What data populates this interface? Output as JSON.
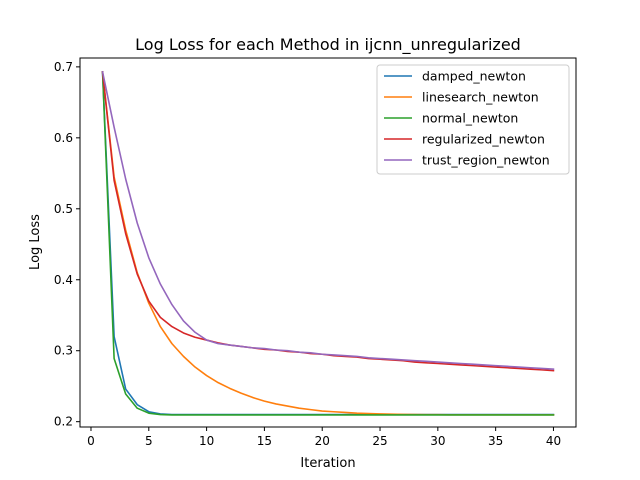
{
  "chart_data": {
    "type": "line",
    "title": "Log Loss for each Method in ijcnn_unregularized",
    "xlabel": "Iteration",
    "ylabel": "Log Loss",
    "xlim": [
      -0.95,
      41.95
    ],
    "ylim": [
      0.1925,
      0.7125
    ],
    "xticks": [
      0,
      5,
      10,
      15,
      20,
      25,
      30,
      35,
      40
    ],
    "yticks": [
      0.2,
      0.3,
      0.4,
      0.5,
      0.6,
      0.7
    ],
    "ytick_labels": [
      "0.2",
      "0.3",
      "0.4",
      "0.5",
      "0.6",
      "0.7"
    ],
    "grid": false,
    "legend_position": "top-right",
    "x": [
      1,
      2,
      3,
      4,
      5,
      6,
      7,
      8,
      9,
      10,
      11,
      12,
      13,
      14,
      15,
      16,
      17,
      18,
      19,
      20,
      21,
      22,
      23,
      24,
      25,
      26,
      27,
      28,
      29,
      30,
      31,
      32,
      33,
      34,
      35,
      36,
      37,
      38,
      39,
      40
    ],
    "series": [
      {
        "name": "damped_newton",
        "color": "#1f77b4",
        "values": [
          0.693,
          0.32,
          0.246,
          0.224,
          0.214,
          0.211,
          0.21,
          0.21,
          0.21,
          0.21,
          0.21,
          0.21,
          0.21,
          0.21,
          0.21,
          0.21,
          0.21,
          0.21,
          0.21,
          0.21,
          0.21,
          0.21,
          0.21,
          0.21,
          0.21,
          0.21,
          0.21,
          0.21,
          0.21,
          0.21,
          0.21,
          0.21,
          0.21,
          0.21,
          0.21,
          0.21,
          0.21,
          0.21,
          0.21,
          0.21
        ]
      },
      {
        "name": "linesearch_newton",
        "color": "#ff7f0e",
        "values": [
          0.693,
          0.545,
          0.47,
          0.41,
          0.367,
          0.334,
          0.31,
          0.292,
          0.277,
          0.265,
          0.255,
          0.247,
          0.24,
          0.234,
          0.229,
          0.225,
          0.222,
          0.219,
          0.217,
          0.215,
          0.214,
          0.213,
          0.212,
          0.2115,
          0.211,
          0.2105,
          0.2102,
          0.21,
          0.2099,
          0.2098,
          0.2097,
          0.2097,
          0.2097,
          0.2097,
          0.2097,
          0.2097,
          0.2097,
          0.2097,
          0.2097,
          0.2097
        ]
      },
      {
        "name": "normal_newton",
        "color": "#2ca02c",
        "values": [
          0.693,
          0.289,
          0.239,
          0.219,
          0.212,
          0.21,
          0.2095,
          0.2095,
          0.2095,
          0.2095,
          0.2095,
          0.2095,
          0.2095,
          0.2095,
          0.2095,
          0.2095,
          0.2095,
          0.2095,
          0.2095,
          0.2095,
          0.2095,
          0.2095,
          0.2095,
          0.2095,
          0.2095,
          0.2095,
          0.2095,
          0.2095,
          0.2095,
          0.2095,
          0.2095,
          0.2095,
          0.2095,
          0.2095,
          0.2095,
          0.2095,
          0.2095,
          0.2095,
          0.2095,
          0.2095
        ]
      },
      {
        "name": "regularized_newton",
        "color": "#d62728",
        "values": [
          0.693,
          0.54,
          0.465,
          0.408,
          0.37,
          0.347,
          0.334,
          0.325,
          0.319,
          0.315,
          0.311,
          0.308,
          0.306,
          0.304,
          0.302,
          0.301,
          0.299,
          0.298,
          0.296,
          0.295,
          0.293,
          0.292,
          0.291,
          0.289,
          0.288,
          0.287,
          0.286,
          0.284,
          0.283,
          0.282,
          0.281,
          0.28,
          0.279,
          0.278,
          0.277,
          0.276,
          0.275,
          0.274,
          0.273,
          0.272
        ]
      },
      {
        "name": "trust_region_newton",
        "color": "#9467bd",
        "values": [
          0.693,
          0.615,
          0.542,
          0.48,
          0.431,
          0.394,
          0.365,
          0.342,
          0.326,
          0.315,
          0.31,
          0.308,
          0.306,
          0.304,
          0.303,
          0.301,
          0.3,
          0.298,
          0.297,
          0.295,
          0.294,
          0.293,
          0.292,
          0.29,
          0.289,
          0.288,
          0.287,
          0.286,
          0.285,
          0.284,
          0.283,
          0.282,
          0.281,
          0.28,
          0.279,
          0.278,
          0.277,
          0.276,
          0.275,
          0.274
        ]
      }
    ]
  }
}
